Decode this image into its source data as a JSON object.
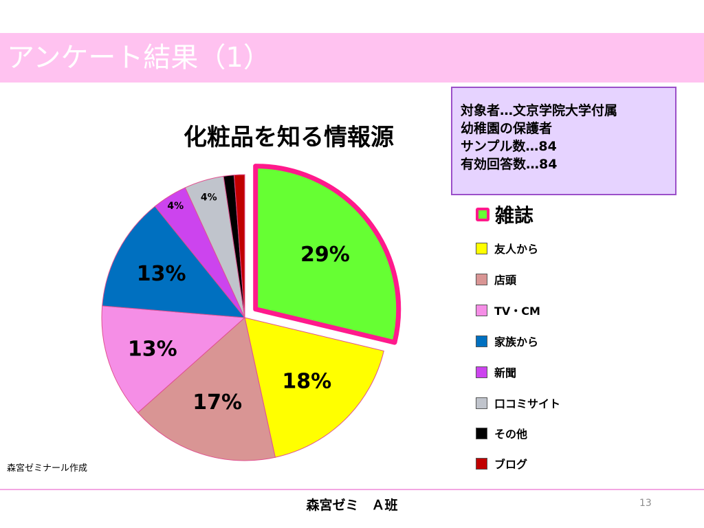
{
  "slide": {
    "title": "アンケート結果（1）",
    "credit": "森宮ゼミナール作成",
    "footer": "森宮ゼミ　Ａ班",
    "page_number": "13",
    "title_bar_color": "#ffc2f0"
  },
  "info_box": {
    "lines": [
      "対象者…文京学院大学付属",
      "幼稚園の保護者",
      "サンプル数…84",
      "有効回答数…84"
    ]
  },
  "chart_data": {
    "type": "pie",
    "title": "化粧品を知る情報源",
    "legend_position": "right",
    "exploded_slice": "雑誌",
    "slices": [
      {
        "label": "雑誌",
        "value": 29,
        "display": "29%",
        "color": "#66ff33"
      },
      {
        "label": "友人から",
        "value": 18,
        "display": "18%",
        "color": "#ffff00"
      },
      {
        "label": "店頭",
        "value": 17,
        "display": "17%",
        "color": "#d99594"
      },
      {
        "label": "TV・CM",
        "value": 13,
        "display": "13%",
        "color": "#f58ee6"
      },
      {
        "label": "家族から",
        "value": 13,
        "display": "13%",
        "color": "#0070c0"
      },
      {
        "label": "新聞",
        "value": 4,
        "display": "4%",
        "color": "#cc44ee"
      },
      {
        "label": "口コミサイト",
        "value": 4.5,
        "display": "4%",
        "color": "#c0c4cc"
      },
      {
        "label": "その他",
        "value": 1.2,
        "display": "",
        "color": "#000000"
      },
      {
        "label": "ブログ",
        "value": 1.2,
        "display": "",
        "color": "#c00000"
      }
    ]
  }
}
